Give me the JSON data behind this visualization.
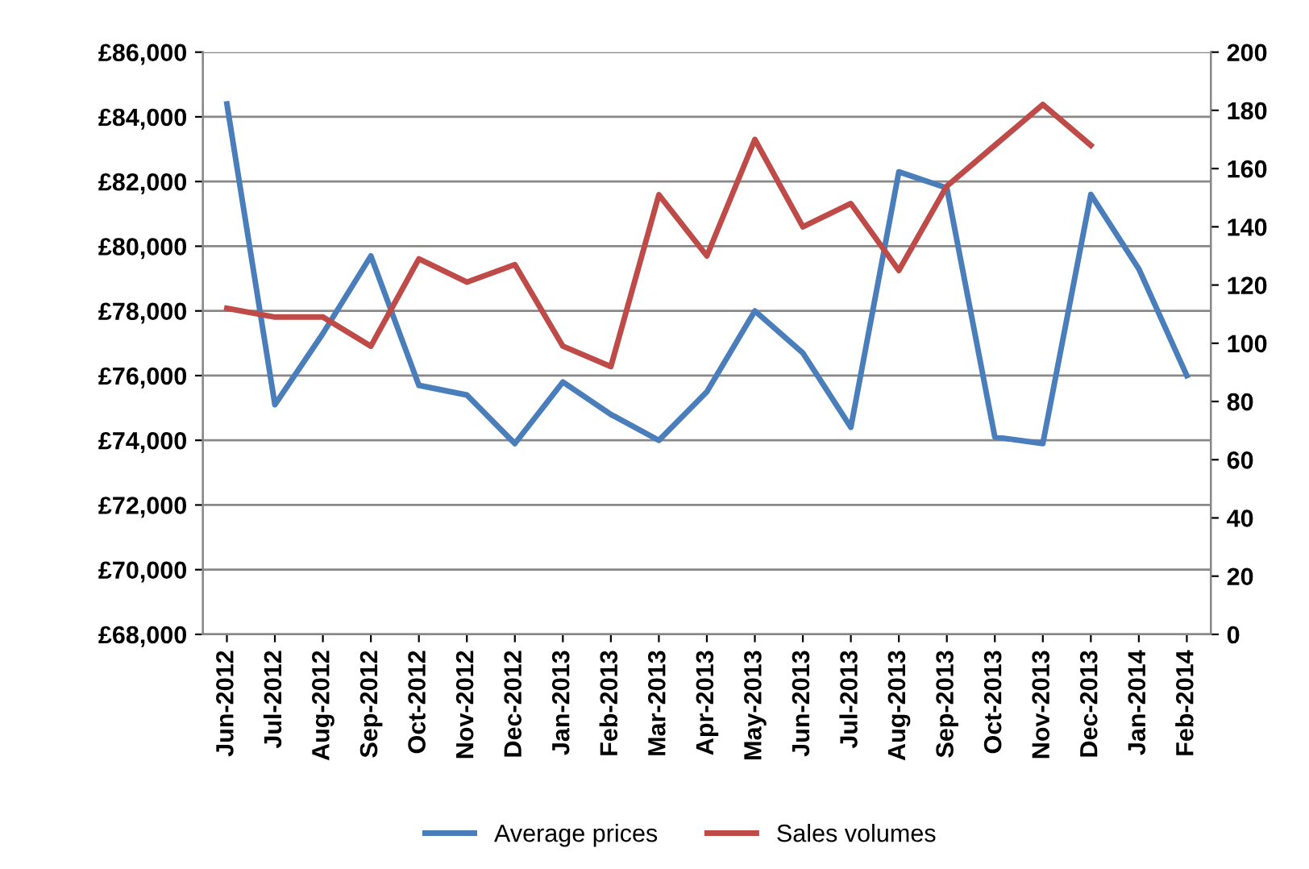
{
  "chart_data": {
    "type": "line",
    "categories": [
      "Jun-2012",
      "Jul-2012",
      "Aug-2012",
      "Sep-2012",
      "Oct-2012",
      "Nov-2012",
      "Dec-2012",
      "Jan-2013",
      "Feb-2013",
      "Mar-2013",
      "Apr-2013",
      "May-2013",
      "Jun-2013",
      "Jul-2013",
      "Aug-2013",
      "Sep-2013",
      "Oct-2013",
      "Nov-2013",
      "Dec-2013",
      "Jan-2014",
      "Feb-2014"
    ],
    "series": [
      {
        "name": "Average prices",
        "color": "#4a7ebb",
        "values": [
          84400,
          75100,
          77300,
          79700,
          75700,
          75400,
          73900,
          75800,
          74800,
          74000,
          75500,
          78000,
          76700,
          74400,
          82300,
          81800,
          74100,
          73900,
          81600,
          79300,
          76000
        ]
      },
      {
        "name": "Sales volumes",
        "color": "#be4b48",
        "axis": "y2",
        "values": [
          112,
          109,
          109,
          99,
          129,
          121,
          127,
          99,
          92,
          151,
          130,
          170,
          140,
          148,
          125,
          154,
          168,
          182,
          168,
          null,
          null
        ]
      }
    ],
    "ylim": [
      68000,
      86000
    ],
    "yticks": [
      {
        "value": 68000,
        "label": "£68,000"
      },
      {
        "value": 70000,
        "label": "£70,000"
      },
      {
        "value": 72000,
        "label": "£72,000"
      },
      {
        "value": 74000,
        "label": "£74,000"
      },
      {
        "value": 76000,
        "label": "£76,000"
      },
      {
        "value": 78000,
        "label": "£78,000"
      },
      {
        "value": 80000,
        "label": "£80,000"
      },
      {
        "value": 82000,
        "label": "£82,000"
      },
      {
        "value": 84000,
        "label": "£84,000"
      },
      {
        "value": 86000,
        "label": "£86,000"
      }
    ],
    "y2lim": [
      0,
      200
    ],
    "y2ticks": [
      0,
      20,
      40,
      60,
      80,
      100,
      120,
      140,
      160,
      180,
      200
    ],
    "grid": "y",
    "legend": "bottom",
    "marker": "none",
    "line_style": "solid"
  }
}
